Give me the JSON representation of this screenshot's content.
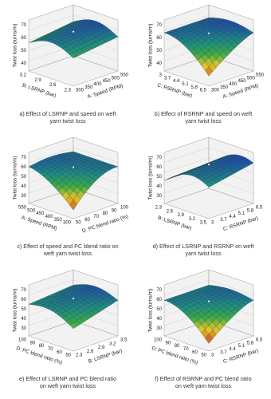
{
  "panels": [
    {
      "caption": [
        "a) Effect of LSRNP and speed on weft",
        "yarn twist loss"
      ],
      "z_axis": {
        "label": "Twist loss (turns/m)",
        "ticks": [
          "40",
          "50",
          "60",
          "70"
        ]
      },
      "left_axis": {
        "label": "B: LSRNP (bar)",
        "ticks": [
          "3.2",
          "2.9",
          "2.6",
          "2.3"
        ]
      },
      "right_axis": {
        "label": "A: Speed (RPM)",
        "ticks": [
          "300",
          "350",
          "400",
          "450",
          "500",
          "550"
        ]
      }
    },
    {
      "caption": [
        "b) Effect of RSRNP and speed on weft",
        "yarn twist loss"
      ],
      "z_axis": {
        "label": "Twist loss (turns/m)",
        "ticks": [
          "40",
          "50",
          "60",
          "70"
        ]
      },
      "left_axis": {
        "label": "C: RSRNP (bar)",
        "ticks": [
          "3",
          "3.7",
          "4.4",
          "5.1",
          "5.8",
          "6.5"
        ]
      },
      "right_axis": {
        "label": "A: Speed (RPM)",
        "ticks": [
          "300",
          "350",
          "400",
          "450",
          "500",
          "550"
        ]
      }
    },
    {
      "caption": [
        "c) Effect of speed and PC blend ratio on",
        "weft yarn twist loss"
      ],
      "z_axis": {
        "label": "Twist loss (turns/m)",
        "ticks": [
          "30",
          "40",
          "50",
          "60",
          "70"
        ]
      },
      "left_axis": {
        "label": "A: Speed (RPM)",
        "ticks": [
          "550",
          "500",
          "450",
          "400",
          "350",
          "300"
        ]
      },
      "right_axis": {
        "label": "D: PC blend ratio (%)",
        "ticks": [
          "50",
          "60",
          "70",
          "80",
          "90",
          "100"
        ]
      }
    },
    {
      "caption": [
        "d) Effect of LSRNP and RSRNP on weft",
        "yarn twist loss"
      ],
      "z_axis": {
        "label": "Twist loss (turns/m)",
        "ticks": [
          "30",
          "40",
          "50",
          "60",
          "70"
        ]
      },
      "left_axis": {
        "label": "B: LSRNP (bar)",
        "ticks": [
          "2.3",
          "2.6",
          "2.9",
          "3.2",
          "3.5"
        ]
      },
      "right_axis": {
        "label": "C: RSRNP (bar)",
        "ticks": [
          "3",
          "3.7",
          "4.4",
          "5.1",
          "5.8",
          "6.5"
        ]
      }
    },
    {
      "caption": [
        "e) Effect of LSRNP and PC blend ratio",
        "on weft yarn twist loss"
      ],
      "z_axis": {
        "label": "Twist loss (turns/m)",
        "ticks": [
          "30",
          "40",
          "50",
          "60",
          "70"
        ]
      },
      "left_axis": {
        "label": "D: PC blend ratio (%)",
        "ticks": [
          "100",
          "90",
          "80",
          "70",
          "60",
          "50"
        ]
      },
      "right_axis": {
        "label": "B: LSRNP (bar)",
        "ticks": [
          "2.3",
          "2.6",
          "2.9",
          "3.2",
          "3.5"
        ]
      }
    },
    {
      "caption": [
        "f) Effect of RSRNP and PC blend ratio",
        "on weft yarn twist loss"
      ],
      "z_axis": {
        "label": "Twist loss (turns/m)",
        "ticks": [
          "30",
          "40",
          "50",
          "60",
          "70"
        ]
      },
      "left_axis": {
        "label": "D: PC blend ratio (%)",
        "ticks": [
          "100",
          "90",
          "80",
          "70",
          "60",
          "50"
        ]
      },
      "right_axis": {
        "label": "C: RSRNP (bar)",
        "ticks": [
          "3",
          "3.7",
          "4.4",
          "5.1",
          "5.8",
          "6.5"
        ]
      }
    }
  ]
}
